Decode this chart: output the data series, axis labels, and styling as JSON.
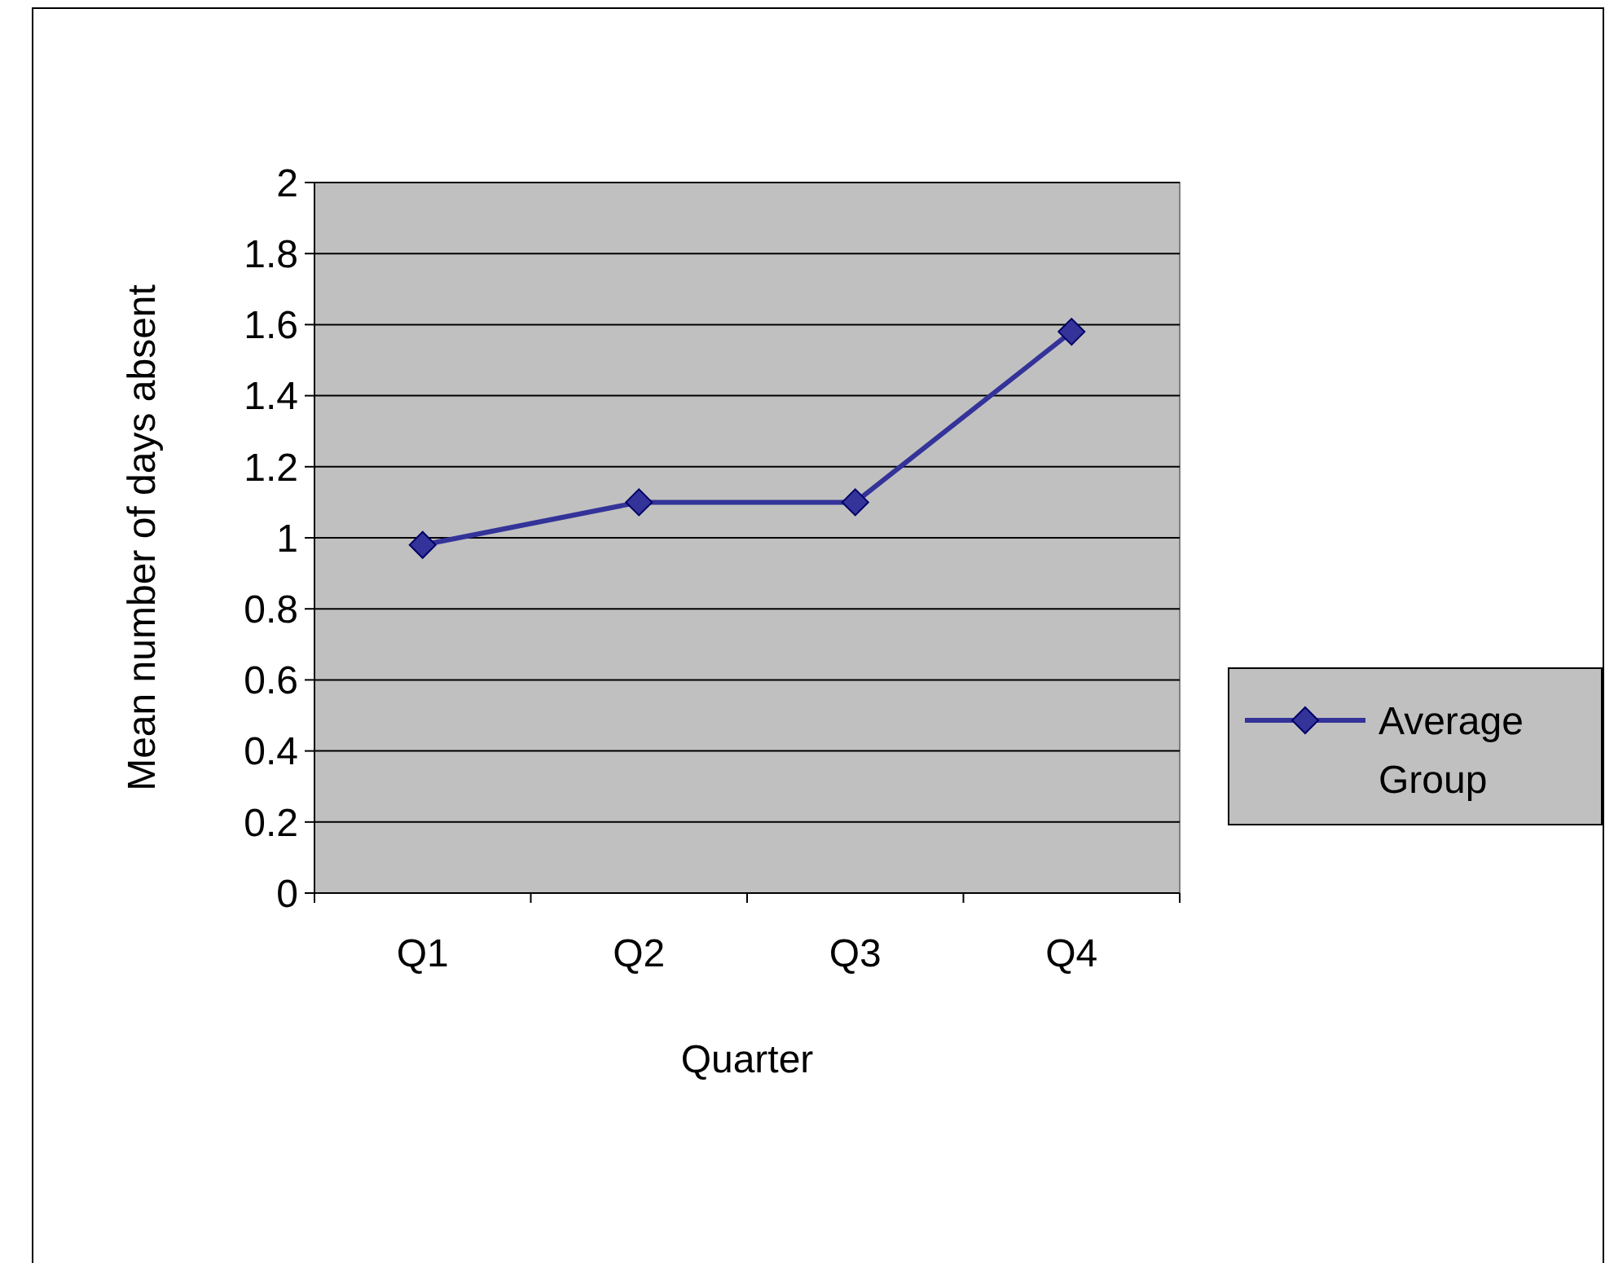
{
  "chart_data": {
    "type": "line",
    "xlabel": "Quarter",
    "ylabel": "Mean number of days absent",
    "categories": [
      "Q1",
      "Q2",
      "Q3",
      "Q4"
    ],
    "series": [
      {
        "name": "Average Group",
        "color": "#333399",
        "values": [
          0.98,
          1.1,
          1.1,
          1.58
        ]
      }
    ],
    "ylim": [
      0,
      2
    ],
    "yticks": [
      0,
      0.2,
      0.4,
      0.6,
      0.8,
      1,
      1.2,
      1.4,
      1.6,
      1.8,
      2
    ],
    "grid": "y",
    "legend": "right",
    "marker": "diamond",
    "line_style": "solid"
  }
}
